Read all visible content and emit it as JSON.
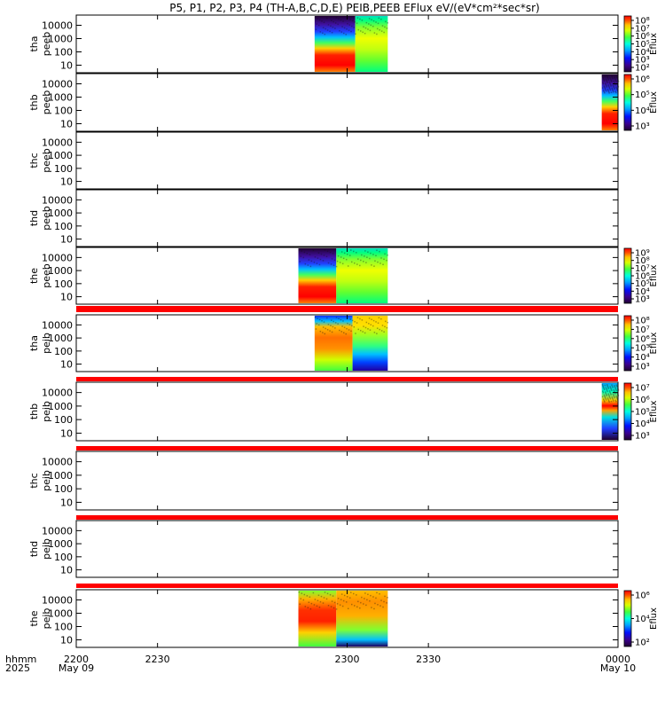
{
  "title": "P5, P1, P2, P3, P4 (TH-A,B,C,D,E) PEIB,PEEB EFlux eV/(eV*cm²*sec*sr)",
  "time_axis": {
    "label_line1": "hhmm",
    "label_line2": "2025",
    "ticks": [
      {
        "t": 2200,
        "label": "2200",
        "date": "May 09"
      },
      {
        "t": 2230,
        "label": "2230",
        "date": ""
      },
      {
        "t": 2300,
        "label": "2300",
        "date": ""
      },
      {
        "t": 2330,
        "label": "2330",
        "date": ""
      },
      {
        "t": 2400,
        "label": "0000",
        "date": "May 10"
      }
    ]
  },
  "colors": {
    "separator_red": "#ff0000",
    "spectrum": [
      "#200030",
      "#3a0090",
      "#0010ff",
      "#00a0ff",
      "#00ffe0",
      "#40ff40",
      "#d8ff00",
      "#ffc000",
      "#ff5000",
      "#ff0000"
    ]
  },
  "chart_data": [
    {
      "type": "heatmap",
      "panel": "tha-peeb",
      "ylabel_1": "tha",
      "ylabel_2": "peeb",
      "yticks": [
        "10000",
        "1000",
        "100",
        "10"
      ],
      "x_start": 2288,
      "x_end": 2315,
      "transition": 2303,
      "pattern": "electron_burst",
      "colorbar": {
        "label": "Eflux",
        "ticks": [
          "10⁸",
          "10⁷",
          "10⁶",
          "10⁵",
          "10⁴",
          "10³",
          "10²"
        ]
      }
    },
    {
      "type": "heatmap",
      "panel": "thb-peeb",
      "ylabel_1": "thb",
      "ylabel_2": "peeb",
      "yticks": [
        "10000",
        "1000",
        "100",
        "10"
      ],
      "x_start": 2394,
      "x_end": 2400,
      "transition": null,
      "pattern": "electron_edge",
      "colorbar": {
        "label": "Eflux",
        "ticks": [
          "10⁶",
          "10⁵",
          "10⁴",
          "10³"
        ]
      }
    },
    {
      "type": "heatmap",
      "panel": "thc-peeb",
      "ylabel_1": "thc",
      "ylabel_2": "peeb",
      "yticks": [
        "10000",
        "1000",
        "100",
        "10"
      ],
      "x_start": null,
      "x_end": null,
      "pattern": "empty",
      "colorbar": null
    },
    {
      "type": "heatmap",
      "panel": "thd-peeb",
      "ylabel_1": "thd",
      "ylabel_2": "peeb",
      "yticks": [
        "10000",
        "1000",
        "100",
        "10"
      ],
      "x_start": null,
      "x_end": null,
      "pattern": "empty",
      "colorbar": null
    },
    {
      "type": "heatmap",
      "panel": "the-peeb",
      "ylabel_1": "the",
      "ylabel_2": "peeb",
      "yticks": [
        "10000",
        "1000",
        "100",
        "10"
      ],
      "x_start": 2282,
      "x_end": 2315,
      "transition": 2296,
      "pattern": "electron_burst",
      "colorbar": {
        "label": "Eflux",
        "ticks": [
          "10⁹",
          "10⁸",
          "10⁷",
          "10⁶",
          "10⁵",
          "10⁴",
          "10³"
        ]
      }
    },
    {
      "type": "heatmap",
      "panel": "tha-peib",
      "ylabel_1": "tha",
      "ylabel_2": "peib",
      "yticks": [
        "10000",
        "1000",
        "100",
        "10"
      ],
      "x_start": 2288,
      "x_end": 2315,
      "transition": 2302,
      "pattern": "ion_burst",
      "colorbar": {
        "label": "Eflux",
        "ticks": [
          "10⁸",
          "10⁷",
          "10⁶",
          "10⁵",
          "10⁴",
          "10³"
        ]
      }
    },
    {
      "type": "heatmap",
      "panel": "thb-peib",
      "ylabel_1": "thb",
      "ylabel_2": "peib",
      "yticks": [
        "10000",
        "1000",
        "100",
        "10"
      ],
      "x_start": 2394,
      "x_end": 2400,
      "transition": null,
      "pattern": "ion_edge",
      "colorbar": {
        "label": "Eflux",
        "ticks": [
          "10⁷",
          "10⁶",
          "10⁵",
          "10⁴",
          "10³"
        ]
      }
    },
    {
      "type": "heatmap",
      "panel": "thc-peib",
      "ylabel_1": "thc",
      "ylabel_2": "peib",
      "yticks": [
        "10000",
        "1000",
        "100",
        "10"
      ],
      "x_start": null,
      "x_end": null,
      "pattern": "empty",
      "colorbar": null
    },
    {
      "type": "heatmap",
      "panel": "thd-peib",
      "ylabel_1": "thd",
      "ylabel_2": "peib",
      "yticks": [
        "10000",
        "1000",
        "100",
        "10"
      ],
      "x_start": null,
      "x_end": null,
      "pattern": "empty",
      "colorbar": null
    },
    {
      "type": "heatmap",
      "panel": "the-peib",
      "ylabel_1": "the",
      "ylabel_2": "peib",
      "yticks": [
        "10000",
        "1000",
        "100",
        "10"
      ],
      "x_start": 2282,
      "x_end": 2315,
      "transition": 2296,
      "pattern": "ion_burst_e",
      "colorbar": {
        "label": "Eflux",
        "ticks": [
          "10⁶",
          "10⁴",
          "10²"
        ]
      }
    }
  ]
}
